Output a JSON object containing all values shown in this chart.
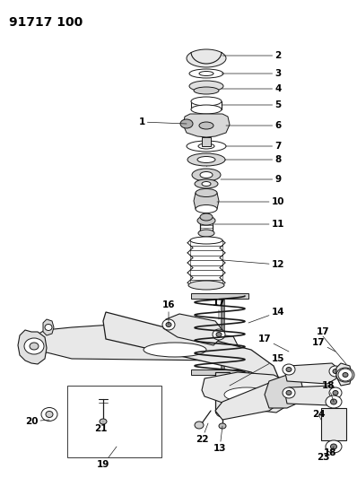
{
  "title": "91717 100",
  "bg_color": "#ffffff",
  "lc": "#1a1a1a",
  "fig_width": 3.98,
  "fig_height": 5.33,
  "dpi": 100,
  "label_fontsize": 7.5,
  "title_fontsize": 10
}
